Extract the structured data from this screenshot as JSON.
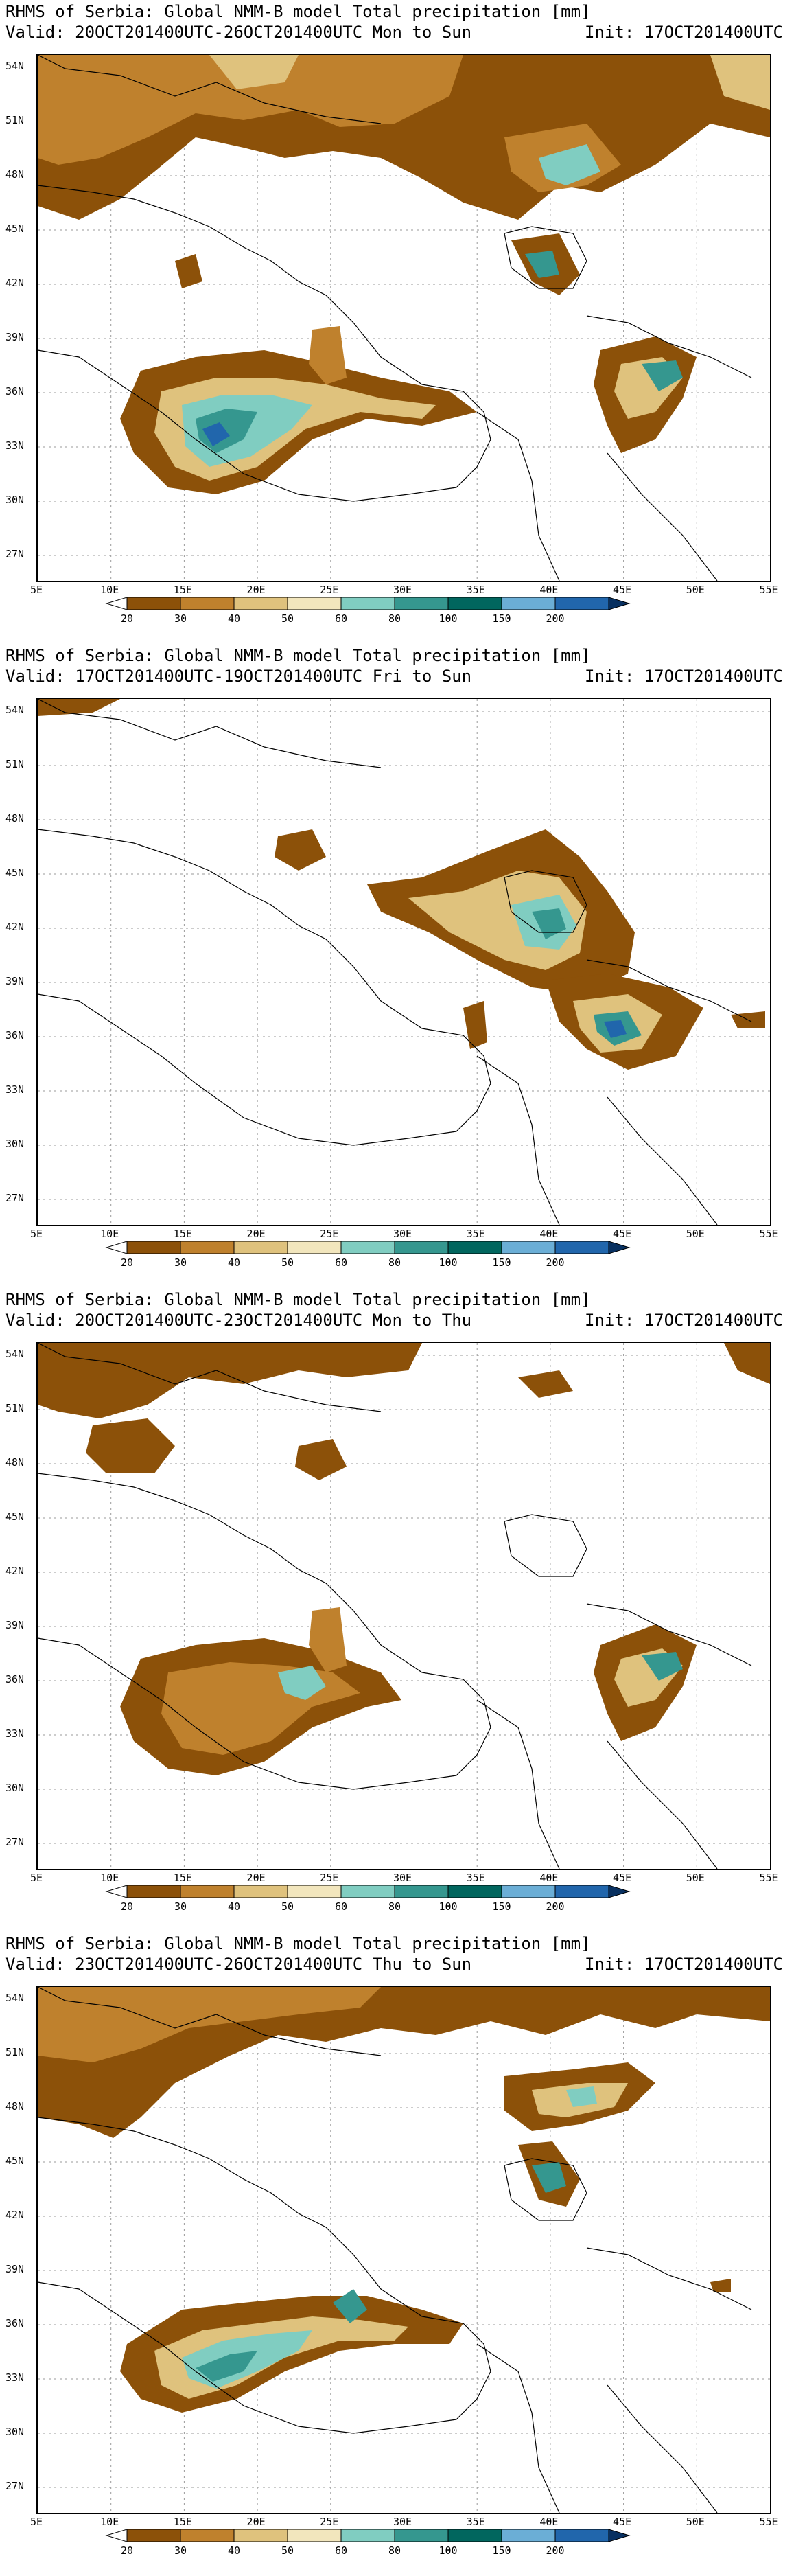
{
  "colors": {
    "c20": "#8c5109",
    "c30": "#bf812d",
    "c40": "#dfc27d",
    "c50": "#f2e6bd",
    "c60": "#80cdc1",
    "c80": "#35978f",
    "c100": "#01665e",
    "c150": "#6baed6",
    "c200": "#2166ac",
    "c_end": "#083060",
    "coast": "#000000",
    "grid": "#9a9a9a"
  },
  "colorbar_labels": [
    "20",
    "30",
    "40",
    "50",
    "60",
    "80",
    "100",
    "150",
    "200"
  ],
  "lat_labels": [
    "54N",
    "51N",
    "48N",
    "45N",
    "42N",
    "39N",
    "36N",
    "33N",
    "30N",
    "27N"
  ],
  "lon_labels": [
    "5E",
    "10E",
    "15E",
    "20E",
    "25E",
    "30E",
    "35E",
    "40E",
    "45E",
    "50E",
    "55E"
  ],
  "panels": [
    {
      "title": "RHMS of Serbia: Global NMM-B model Total precipitation [mm]",
      "valid": "Valid: 20OCT201400UTC-26OCT201400UTC Mon to Sun",
      "init": "Init: 17OCT201400UTC"
    },
    {
      "title": "RHMS of Serbia: Global NMM-B model Total precipitation [mm]",
      "valid": "Valid: 17OCT201400UTC-19OCT201400UTC Fri to Sun",
      "init": "Init: 17OCT201400UTC"
    },
    {
      "title": "RHMS of Serbia: Global NMM-B model Total precipitation [mm]",
      "valid": "Valid: 20OCT201400UTC-23OCT201400UTC Mon to Thu",
      "init": "Init: 17OCT201400UTC"
    },
    {
      "title": "RHMS of Serbia: Global NMM-B model Total precipitation [mm]",
      "valid": "Valid: 23OCT201400UTC-26OCT201400UTC Thu to Sun",
      "init": "Init: 17OCT201400UTC"
    }
  ]
}
